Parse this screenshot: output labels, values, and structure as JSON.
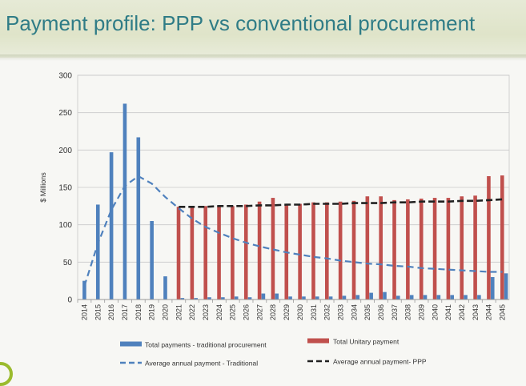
{
  "slide": {
    "title": "Payment profile:  PPP vs conventional procurement"
  },
  "colors": {
    "traditional": "#4f81bd",
    "unitary": "#c0504d",
    "ppp_line": "#222222",
    "title": "#2f7c86"
  },
  "chart_data": {
    "type": "bar",
    "title": "",
    "xlabel": "",
    "ylabel": "$ Millions",
    "ylim": [
      0,
      300
    ],
    "yticks": [
      0,
      50,
      100,
      150,
      200,
      250,
      300
    ],
    "grid": true,
    "legend_position": "bottom",
    "categories": [
      "2014",
      "2015",
      "2016",
      "2017",
      "2018",
      "2019",
      "2020",
      "2021",
      "2022",
      "2023",
      "2024",
      "2025",
      "2026",
      "2027",
      "2028",
      "2029",
      "2030",
      "2031",
      "2032",
      "2033",
      "2034",
      "2035",
      "2036",
      "2037",
      "2038",
      "2039",
      "2040",
      "2041",
      "2042",
      "2043",
      "2044",
      "2045"
    ],
    "series": [
      {
        "name": "Total payments - traditional procurement",
        "kind": "bar",
        "values": [
          25,
          127,
          197,
          262,
          217,
          105,
          31,
          2,
          2,
          3,
          3,
          4,
          3,
          8,
          8,
          4,
          4,
          4,
          4,
          5,
          6,
          9,
          10,
          5,
          6,
          6,
          6,
          6,
          6,
          6,
          30,
          35
        ]
      },
      {
        "name": "Total Unitary payment",
        "kind": "bar",
        "values": [
          0,
          0,
          0,
          0,
          0,
          0,
          0,
          124,
          125,
          125,
          125,
          125,
          127,
          131,
          136,
          128,
          128,
          130,
          130,
          131,
          132,
          138,
          138,
          133,
          134,
          135,
          136,
          136,
          138,
          139,
          165,
          166
        ]
      },
      {
        "name": "Average annual payment - Traditional",
        "kind": "line",
        "style": "dashed",
        "values": [
          18,
          75,
          120,
          152,
          165,
          155,
          137,
          122,
          108,
          97,
          89,
          82,
          76,
          71,
          67,
          63,
          60,
          57,
          55,
          52,
          50,
          48,
          47,
          45,
          44,
          42,
          41,
          40,
          39,
          38,
          37,
          37
        ]
      },
      {
        "name": "Average annual payment- PPP",
        "kind": "line",
        "style": "dashed",
        "values": [
          null,
          null,
          null,
          null,
          null,
          null,
          null,
          124,
          124,
          124,
          125,
          125,
          125,
          126,
          126,
          127,
          127,
          128,
          128,
          128,
          129,
          129,
          129,
          130,
          130,
          131,
          131,
          131,
          132,
          132,
          133,
          134
        ]
      }
    ]
  }
}
